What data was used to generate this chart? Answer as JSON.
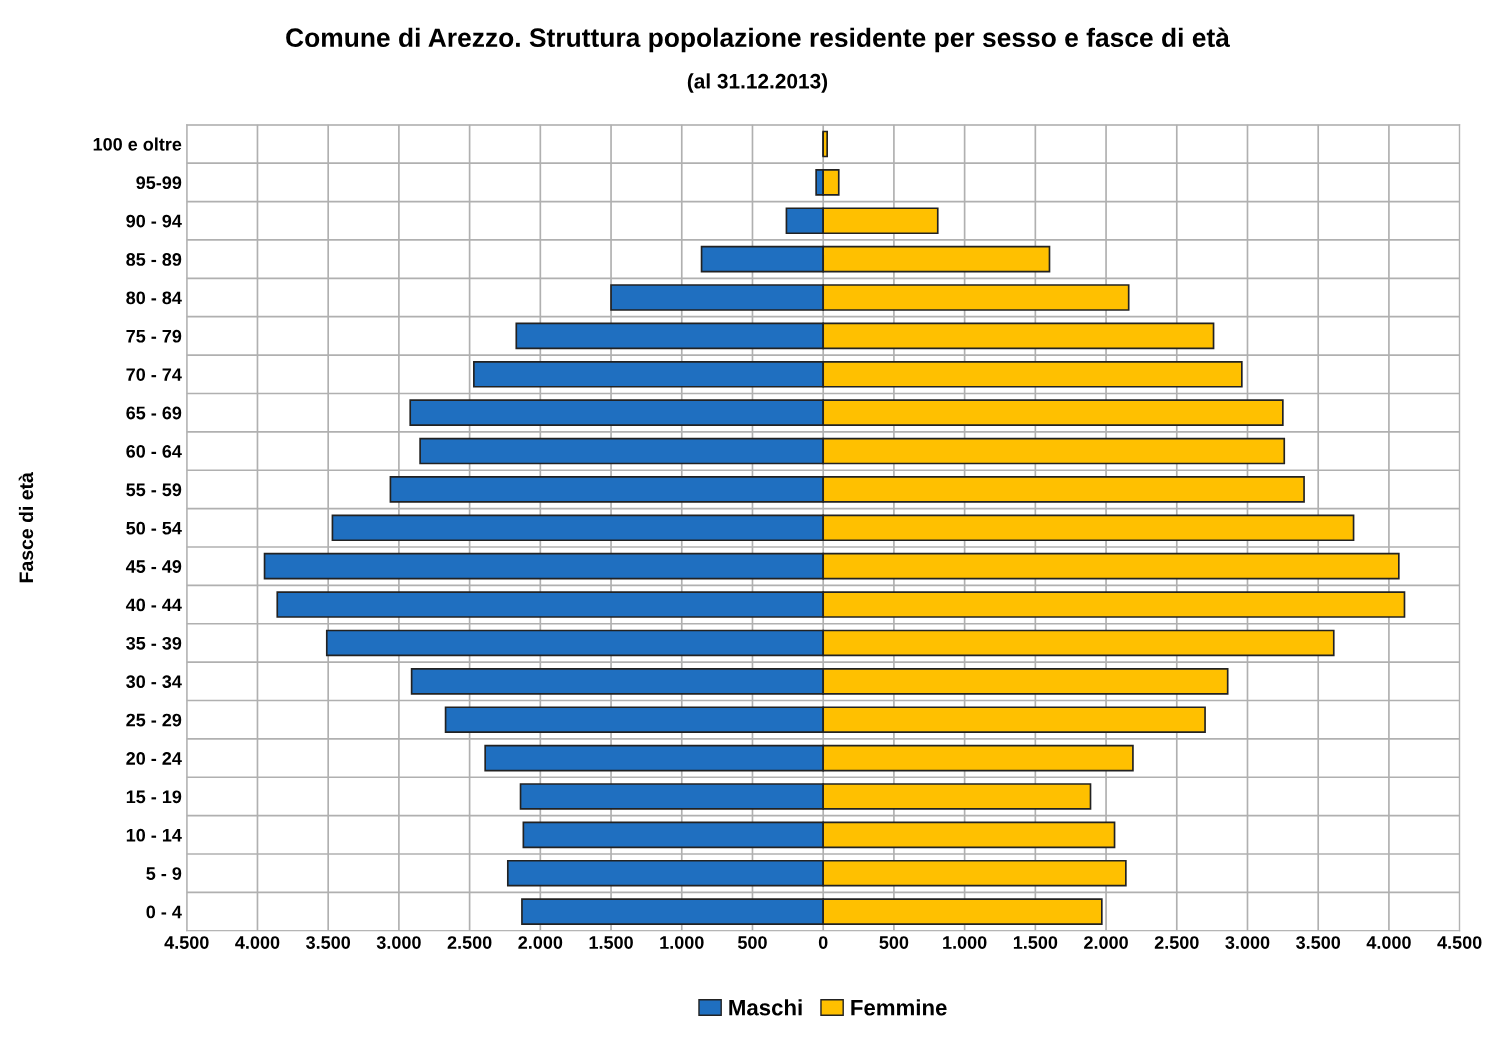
{
  "chart_data": {
    "type": "bar",
    "orientation": "horizontal",
    "stacked": true,
    "title": "Comune di Arezzo. Struttura popolazione residente per sesso e fasce di età",
    "subtitle": "(al 31.12.2013)",
    "ylabel": "Fasce di età",
    "categories": [
      "100 e oltre",
      "95-99",
      "90 - 94",
      "85 - 89",
      "80 - 84",
      "75 - 79",
      "70 - 74",
      "65 - 69",
      "60 - 64",
      "55 - 59",
      "50 - 54",
      "45 - 49",
      "40 - 44",
      "35 - 39",
      "30 - 34",
      "25 - 29",
      "20 - 24",
      "15 - 19",
      "10 - 14",
      "5 - 9",
      "0 - 4"
    ],
    "series": [
      {
        "name": "Maschi",
        "color": "#1f6fc0",
        "values": [
          null,
          -50,
          -260,
          -860,
          -1500,
          -2170,
          -2470,
          -2920,
          -2850,
          -3060,
          -3470,
          -3950,
          -3860,
          -3510,
          -2910,
          -2670,
          -2390,
          -2140,
          -2120,
          -2230,
          -2130
        ]
      },
      {
        "name": "Femmine",
        "color": "#ffc000",
        "values": [
          28,
          110,
          810,
          1600,
          2160,
          2760,
          2960,
          3250,
          3260,
          3400,
          3750,
          4070,
          4110,
          3610,
          2860,
          2700,
          2190,
          1890,
          2060,
          2140,
          1970
        ]
      }
    ],
    "xlim": [
      -4500,
      4500
    ],
    "xticks": [
      {
        "value": -4500,
        "label": "4.500"
      },
      {
        "value": -4000,
        "label": "4.000"
      },
      {
        "value": -3500,
        "label": "3.500"
      },
      {
        "value": -3000,
        "label": "3.000"
      },
      {
        "value": -2500,
        "label": "2.500"
      },
      {
        "value": -2000,
        "label": "2.000"
      },
      {
        "value": -1500,
        "label": "1.500"
      },
      {
        "value": -1000,
        "label": "1.000"
      },
      {
        "value": -500,
        "label": "500"
      },
      0,
      500,
      {
        "value": 1000,
        "label": "1.000"
      },
      {
        "value": 1500,
        "label": "1.500"
      },
      {
        "value": 2000,
        "label": "2.000"
      },
      {
        "value": 2500,
        "label": "2.500"
      },
      {
        "value": 3000,
        "label": "3.000"
      },
      {
        "value": 3500,
        "label": "3.500"
      },
      {
        "value": 4000,
        "label": "4.000"
      },
      {
        "value": 4500,
        "label": "4.500"
      }
    ],
    "grid": true,
    "legend": "bottom"
  }
}
